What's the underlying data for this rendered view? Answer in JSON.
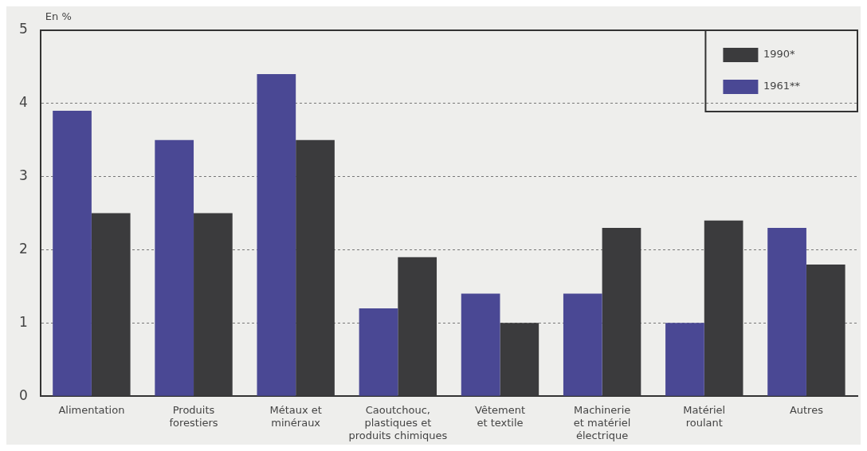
{
  "chart_data": {
    "type": "bar",
    "ylabel": "En %",
    "categories": [
      "Alimentation",
      "Produits\nforestiers",
      "Métaux et\nminéraux",
      "Caoutchouc,\nplastiques et\nproduits chimiques",
      "Vêtement\net textile",
      "Machinerie\net matériel\nélectrique",
      "Matériel\nroulant",
      "Autres"
    ],
    "series": [
      {
        "name": "1961**",
        "color": "#4a4894",
        "values": [
          3.9,
          3.5,
          4.4,
          1.2,
          1.4,
          1.4,
          1.0,
          2.3
        ]
      },
      {
        "name": "1990*",
        "color": "#3b3b3d",
        "values": [
          2.5,
          2.5,
          3.5,
          1.9,
          1.0,
          2.3,
          2.4,
          1.8
        ]
      }
    ],
    "ylim": [
      0,
      5
    ],
    "yticks": [
      0,
      1,
      2,
      3,
      4,
      5
    ],
    "grid": "y",
    "legend": "top right"
  }
}
